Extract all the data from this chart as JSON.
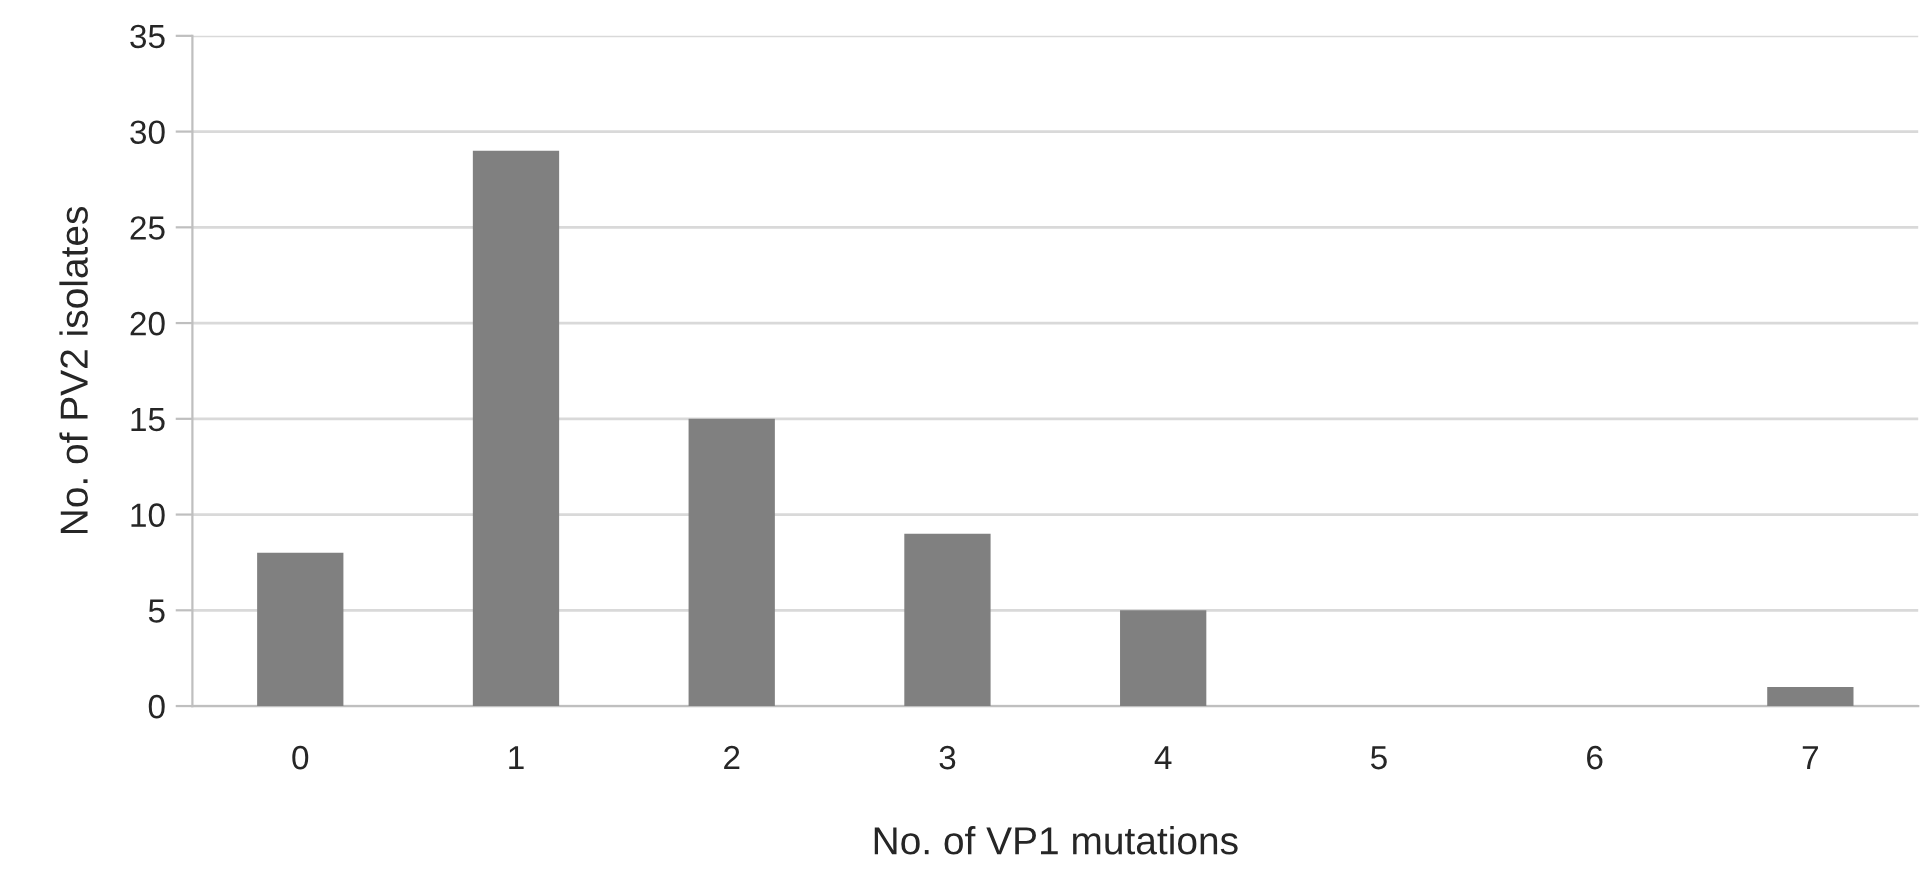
{
  "chart_data": {
    "type": "bar",
    "xlabel": "No. of VP1 mutations",
    "ylabel": "No. of PV2 isolates",
    "categories": [
      "0",
      "1",
      "2",
      "3",
      "4",
      "5",
      "6",
      "7"
    ],
    "values": [
      8,
      29,
      15,
      9,
      5,
      0,
      0,
      1
    ],
    "color": "#808080",
    "ylim": [
      0,
      35
    ],
    "yticks": [
      0,
      5,
      10,
      15,
      20,
      25,
      30,
      35
    ],
    "grid": "y",
    "legend": false
  }
}
